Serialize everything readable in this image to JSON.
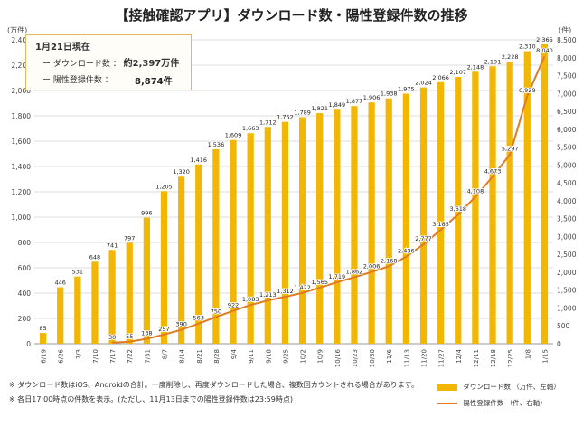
{
  "title": "【接触確認アプリ】ダウンロード数・陽性登録件数の推移",
  "note": {
    "date": "1月21日現在",
    "downloads_label": "ー ダウンロード数 ：",
    "downloads_value": "約2,397万件",
    "positives_label": "ー 陽性登録件数 ：",
    "positives_value": "8,874件"
  },
  "footnotes": [
    "※ ダウンロード数はiOS、Androidの合計。一度削除し、再度ダウンロードした場合、複数回カウントされる場合があります。",
    "※ 各日17:00時点の件数を表示。(ただし、11月13日までの陽性登録件数は23:59時点)"
  ],
  "chart_data": {
    "type": "bar+line",
    "title": "【接触確認アプリ】ダウンロード数・陽性登録件数の推移",
    "categories": [
      "6/19",
      "6/26",
      "7/3",
      "7/10",
      "7/17",
      "7/22",
      "7/31",
      "8/7",
      "8/14",
      "8/21",
      "8/28",
      "9/4",
      "9/11",
      "9/18",
      "9/25",
      "10/2",
      "10/9",
      "10/16",
      "10/23",
      "10/30",
      "11/6",
      "11/13",
      "11/20",
      "11/27",
      "12/4",
      "12/11",
      "12/18",
      "12/25",
      "1/8",
      "1/15"
    ],
    "series": [
      {
        "name": "ダウンロード数 （万件、左軸）",
        "type": "bar",
        "axis": "left",
        "color": "#f2b705",
        "values": [
          85,
          446,
          531,
          648,
          741,
          797,
          996,
          1205,
          1320,
          1416,
          1536,
          1609,
          1663,
          1712,
          1752,
          1789,
          1821,
          1849,
          1877,
          1906,
          1938,
          1975,
          2024,
          2066,
          2107,
          2148,
          2191,
          2228,
          2310,
          2365
        ],
        "labels": [
          "85",
          "446",
          "531",
          "648",
          "741",
          "797",
          "996",
          "1,205",
          "1,320",
          "1,416",
          "1,536",
          "1,609",
          "1,663",
          "1,712",
          "1,752",
          "1,789",
          "1,821",
          "1,849",
          "1,877",
          "1,906",
          "1,938",
          "1,975",
          "2,024",
          "2,066",
          "2,107",
          "2,148",
          "2,191",
          "2,228",
          "2,310",
          "2,365"
        ]
      },
      {
        "name": "陽性登録件数 （件、右軸）",
        "type": "line",
        "axis": "right",
        "color": "#e07b20",
        "values": [
          null,
          null,
          null,
          null,
          30,
          55,
          138,
          257,
          390,
          563,
          750,
          922,
          1083,
          1213,
          1312,
          1422,
          1565,
          1719,
          1862,
          2006,
          2168,
          2436,
          2777,
          3185,
          3618,
          4108,
          4673,
          5297,
          6929,
          8040
        ],
        "labels": [
          "",
          "",
          "",
          "",
          "30",
          "55",
          "138",
          "257",
          "390",
          "563",
          "750",
          "922",
          "1,083",
          "1,213",
          "1,312",
          "1,422",
          "1,565",
          "1,719",
          "1,862",
          "2,006",
          "2,168",
          "2,436",
          "2,777",
          "3,185",
          "3,618",
          "4,108",
          "4,673",
          "5,297",
          "6,929",
          "8,040"
        ]
      }
    ],
    "left_axis": {
      "unit": "(万件)",
      "min": 0,
      "max": 2400,
      "ticks": [
        0,
        200,
        400,
        600,
        800,
        1000,
        1200,
        1400,
        1600,
        1800,
        2000,
        2200,
        2400
      ],
      "tick_labels": [
        "0",
        "200",
        "400",
        "600",
        "800",
        "1,000",
        "1,200",
        "1,400",
        "1,600",
        "1,800",
        "2,000",
        "2,200",
        "2,400"
      ]
    },
    "right_axis": {
      "unit": "(件)",
      "min": 0,
      "max": 8500,
      "ticks": [
        0,
        500,
        1000,
        1500,
        2000,
        2500,
        3000,
        3500,
        4000,
        4500,
        5000,
        5500,
        6000,
        6500,
        7000,
        7500,
        8000,
        8500
      ],
      "tick_labels": [
        "0",
        "500",
        "1,000",
        "1,500",
        "2,000",
        "2,500",
        "3,000",
        "3,500",
        "4,000",
        "4,500",
        "5,000",
        "5,500",
        "6,000",
        "6,500",
        "7,000",
        "7,500",
        "8,000",
        "8,500"
      ]
    },
    "grid": true,
    "legend_position": "bottom-right"
  }
}
